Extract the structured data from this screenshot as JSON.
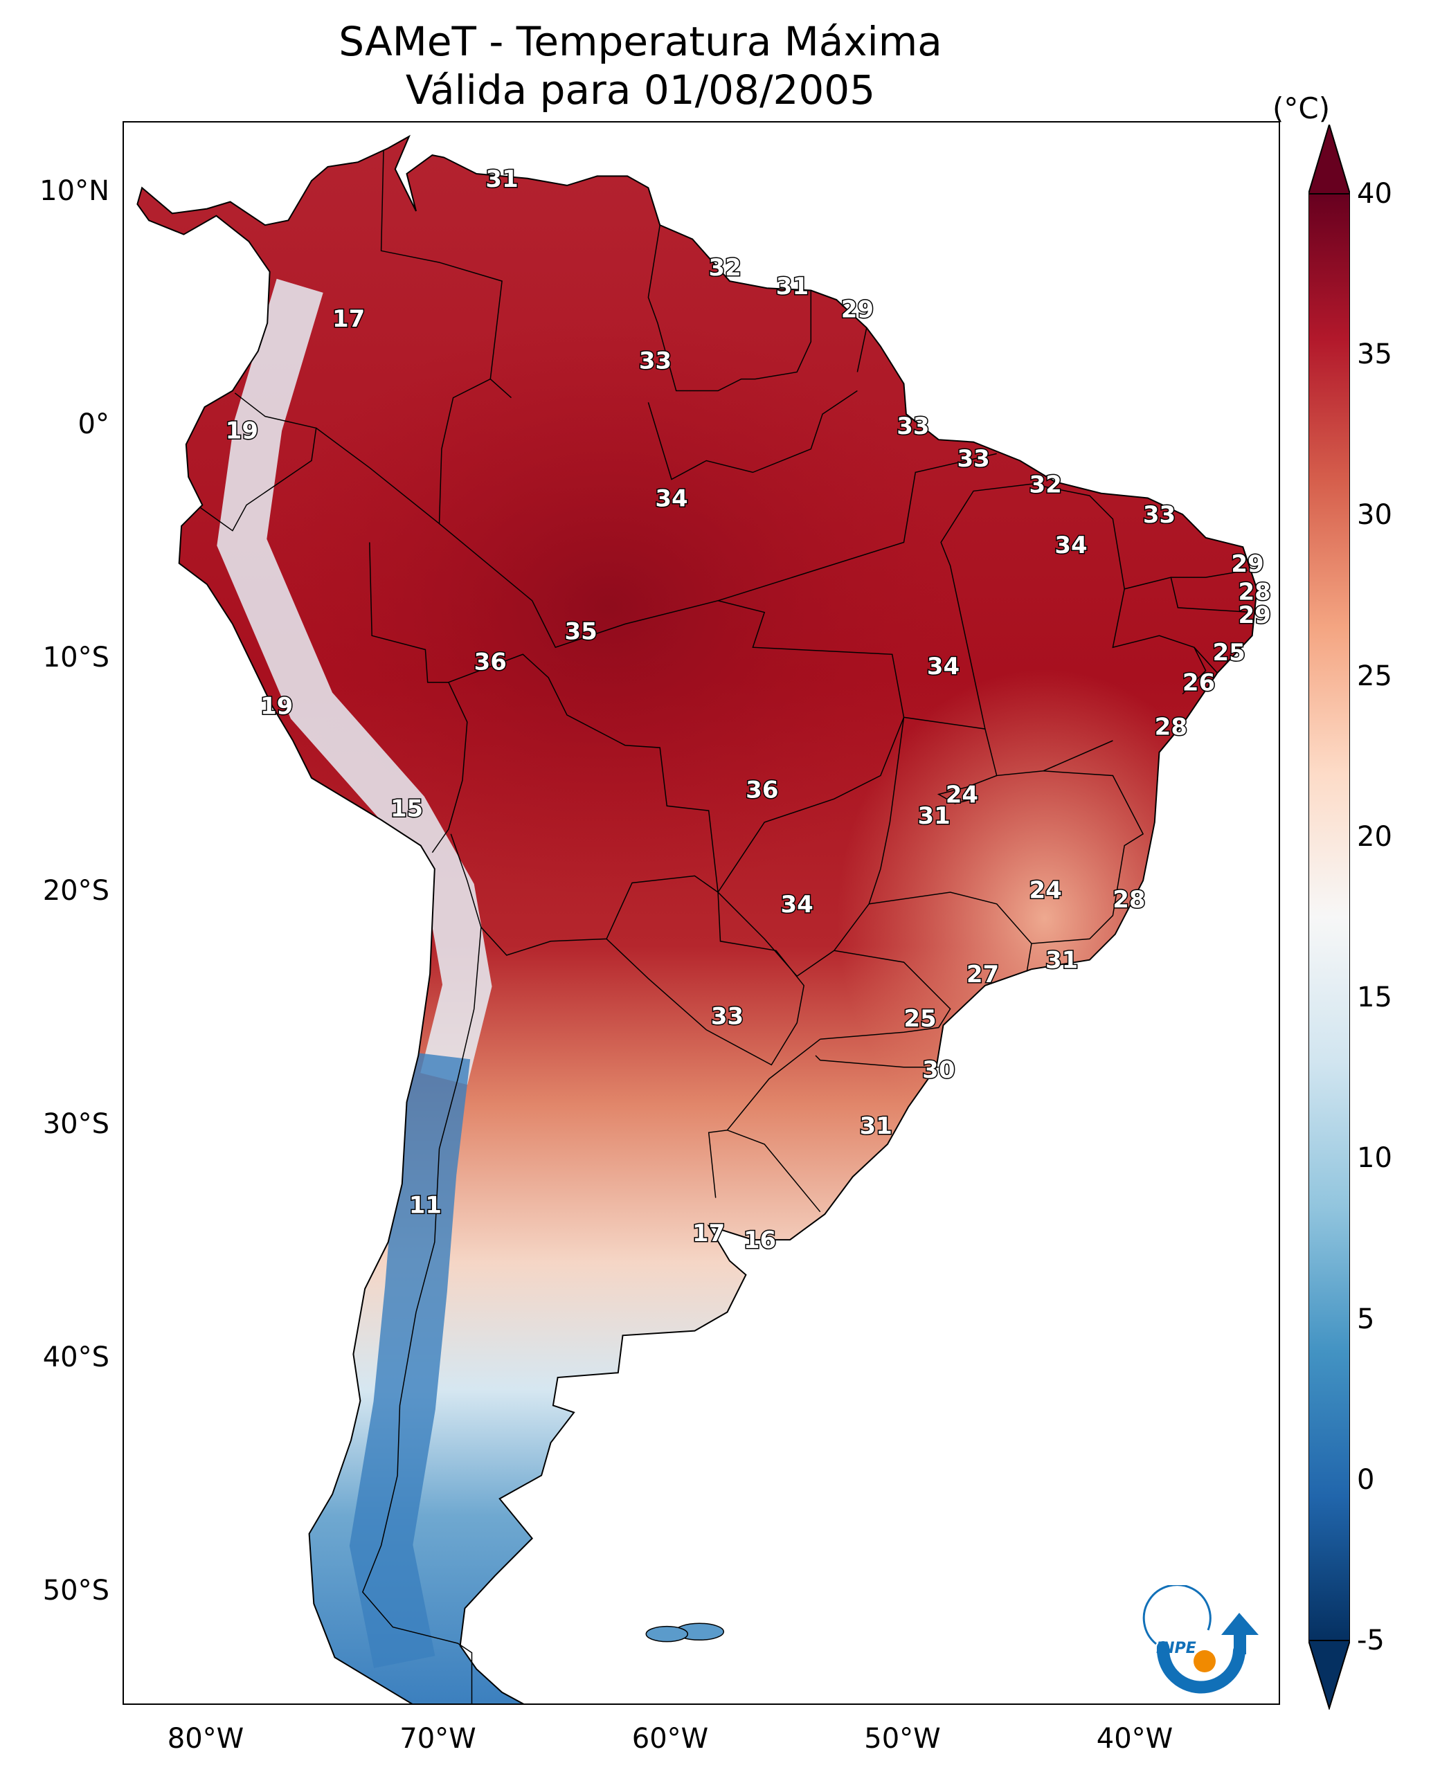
{
  "title": {
    "line1": "SAMeT - Temperatura Máxima",
    "line2": "Válida para 01/08/2005"
  },
  "map_data": {
    "type": "gridded temperature map",
    "region": "South America",
    "variable": "Temperatura Máxima",
    "date": "01/08/2005",
    "lon_range": [
      -83,
      -33
    ],
    "lat_range": [
      -56,
      13
    ],
    "y_ticks": [
      {
        "label": "10°N",
        "lat": 10
      },
      {
        "label": "0°",
        "lat": 0
      },
      {
        "label": "10°S",
        "lat": -10
      },
      {
        "label": "20°S",
        "lat": -20
      },
      {
        "label": "30°S",
        "lat": -30
      },
      {
        "label": "40°S",
        "lat": -40
      },
      {
        "label": "50°S",
        "lat": -50
      }
    ],
    "x_ticks": [
      {
        "label": "80°W",
        "lon": -80
      },
      {
        "label": "70°W",
        "lon": -70
      },
      {
        "label": "60°W",
        "lon": -60
      },
      {
        "label": "50°W",
        "lon": -50
      },
      {
        "label": "40°W",
        "lon": -40
      }
    ],
    "station_values": [
      {
        "v": "31",
        "lon": -67.3,
        "lat": 10.6
      },
      {
        "v": "32",
        "lon": -57.7,
        "lat": 6.8
      },
      {
        "v": "31",
        "lon": -54.8,
        "lat": 6.0
      },
      {
        "v": "29",
        "lon": -52.0,
        "lat": 5.0
      },
      {
        "v": "17",
        "lon": -73.9,
        "lat": 4.6
      },
      {
        "v": "33",
        "lon": -60.7,
        "lat": 2.8
      },
      {
        "v": "19",
        "lon": -78.5,
        "lat": -0.2
      },
      {
        "v": "33",
        "lon": -49.6,
        "lat": 0.0
      },
      {
        "v": "33",
        "lon": -47.0,
        "lat": -1.4
      },
      {
        "v": "32",
        "lon": -43.9,
        "lat": -2.5
      },
      {
        "v": "33",
        "lon": -39.0,
        "lat": -3.8
      },
      {
        "v": "34",
        "lon": -60.0,
        "lat": -3.1
      },
      {
        "v": "34",
        "lon": -42.8,
        "lat": -5.1
      },
      {
        "v": "29",
        "lon": -35.2,
        "lat": -5.9
      },
      {
        "v": "28",
        "lon": -34.9,
        "lat": -7.1
      },
      {
        "v": "29",
        "lon": -34.9,
        "lat": -8.1
      },
      {
        "v": "35",
        "lon": -63.9,
        "lat": -8.8
      },
      {
        "v": "25",
        "lon": -36.0,
        "lat": -9.7
      },
      {
        "v": "36",
        "lon": -67.8,
        "lat": -10.1
      },
      {
        "v": "34",
        "lon": -48.3,
        "lat": -10.3
      },
      {
        "v": "26",
        "lon": -37.3,
        "lat": -11.0
      },
      {
        "v": "19",
        "lon": -77.0,
        "lat": -12.0
      },
      {
        "v": "28",
        "lon": -38.5,
        "lat": -12.9
      },
      {
        "v": "36",
        "lon": -56.1,
        "lat": -15.6
      },
      {
        "v": "24",
        "lon": -47.5,
        "lat": -15.8
      },
      {
        "v": "31",
        "lon": -48.7,
        "lat": -16.7
      },
      {
        "v": "15",
        "lon": -71.4,
        "lat": -16.4
      },
      {
        "v": "24",
        "lon": -43.9,
        "lat": -19.9
      },
      {
        "v": "28",
        "lon": -40.3,
        "lat": -20.3
      },
      {
        "v": "34",
        "lon": -54.6,
        "lat": -20.5
      },
      {
        "v": "31",
        "lon": -43.2,
        "lat": -22.9
      },
      {
        "v": "27",
        "lon": -46.6,
        "lat": -23.5
      },
      {
        "v": "25",
        "lon": -49.3,
        "lat": -25.4
      },
      {
        "v": "33",
        "lon": -57.6,
        "lat": -25.3
      },
      {
        "v": "30",
        "lon": -48.5,
        "lat": -27.6
      },
      {
        "v": "31",
        "lon": -51.2,
        "lat": -30.0
      },
      {
        "v": "11",
        "lon": -70.6,
        "lat": -33.4
      },
      {
        "v": "17",
        "lon": -58.4,
        "lat": -34.6
      },
      {
        "v": "16",
        "lon": -56.2,
        "lat": -34.9
      }
    ]
  },
  "colorbar": {
    "unit": "(°C)",
    "min": -5,
    "max": 40,
    "extend": "both",
    "ticks": [
      "40",
      "35",
      "30",
      "25",
      "20",
      "15",
      "10",
      "5",
      "0",
      "-5"
    ],
    "colormap": "RdBu_r",
    "colors": [
      "#053061",
      "#2166ac",
      "#4393c3",
      "#92c5de",
      "#d1e5f0",
      "#f7f7f7",
      "#fddbc7",
      "#f4a582",
      "#d6604d",
      "#b2182b",
      "#67001f"
    ]
  },
  "logo": {
    "text": "INPE",
    "colors": {
      "blue": "#1170b8",
      "orange": "#f18a00"
    }
  }
}
